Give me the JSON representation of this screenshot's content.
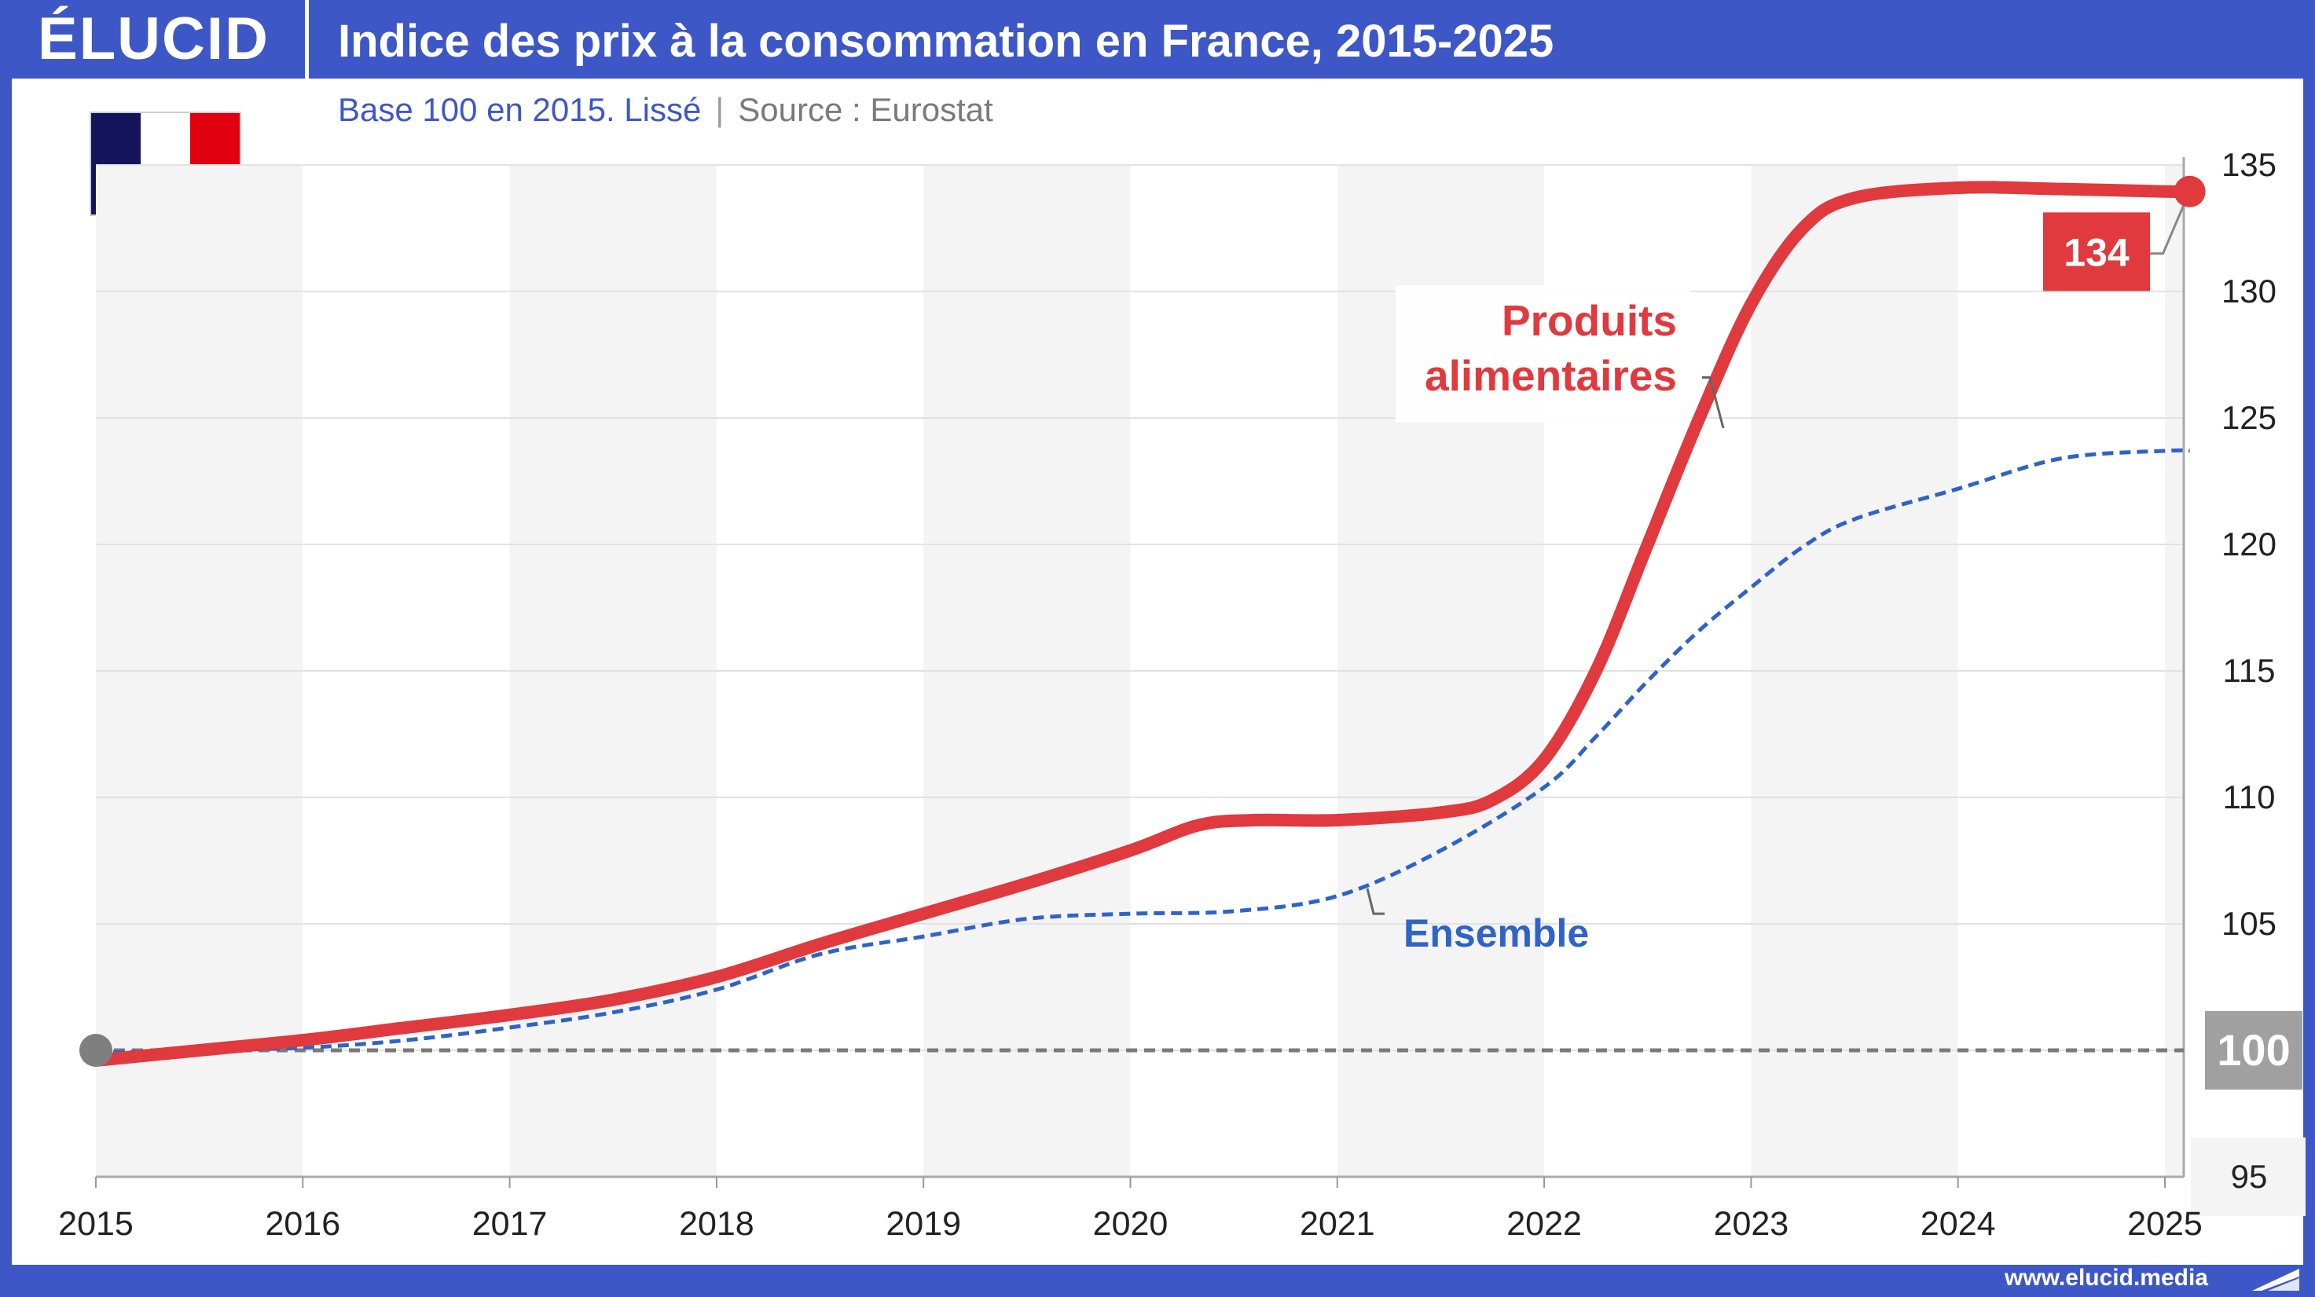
{
  "header": {
    "logo": "ÉLUCID",
    "title": "Indice des prix à la consommation en France, 2015-2025"
  },
  "subtitle": {
    "main": "Base 100 en 2015. Lissé",
    "separator": "|",
    "source": "Source : Eurostat"
  },
  "flag": {
    "name": "france-flag-icon",
    "colors": [
      "#14145a",
      "#ffffff",
      "#e1000f"
    ]
  },
  "footer": {
    "url": "www.elucid.media"
  },
  "colors": {
    "brand": "#3e57c7",
    "food": "#e0393e",
    "all_items": "#2f63c8",
    "baseline": "#7a7a7a"
  },
  "chart_data": {
    "type": "line",
    "title": "Indice des prix à la consommation en France, 2015-2025",
    "subtitle": "Base 100 en 2015. Lissé",
    "xlim": [
      2015,
      2025.17
    ],
    "ylim": [
      95,
      135
    ],
    "x_ticks": [
      "2015",
      "2016",
      "2017",
      "2018",
      "2019",
      "2020",
      "2021",
      "2022",
      "2023",
      "2024",
      "2025"
    ],
    "y_ticks": [
      95,
      100,
      105,
      110,
      115,
      120,
      125,
      130,
      135
    ],
    "y_axis_side": "right",
    "grid": true,
    "alternating_year_bands": true,
    "baseline": {
      "value": 100,
      "style": "dashed",
      "label": "100"
    },
    "start_point": {
      "x": 2015,
      "y": 100
    },
    "series": [
      {
        "name": "Produits alimentaires",
        "style": "solid-thick",
        "x": [
          2015,
          2015.5,
          2016,
          2016.5,
          2017,
          2017.5,
          2018,
          2018.5,
          2019,
          2019.5,
          2020,
          2020.33,
          2020.6,
          2021,
          2021.5,
          2021.75,
          2022,
          2022.25,
          2022.5,
          2022.75,
          2023,
          2023.25,
          2023.5,
          2024,
          2024.5,
          2025,
          2025.12
        ],
        "y": [
          99.6,
          100,
          100.4,
          100.9,
          101.4,
          102,
          102.9,
          104.2,
          105.4,
          106.6,
          107.9,
          108.9,
          109.1,
          109.1,
          109.4,
          109.9,
          111.5,
          115,
          120,
          125,
          129.5,
          132.5,
          133.7,
          134.1,
          134.05,
          133.95,
          133.95
        ],
        "end_label": "134",
        "label_lines": [
          "Produits",
          "alimentaires"
        ]
      },
      {
        "name": "Ensemble",
        "style": "dashed",
        "x": [
          2015,
          2015.5,
          2016,
          2016.5,
          2017,
          2017.5,
          2018,
          2018.5,
          2019,
          2019.5,
          2020,
          2020.5,
          2021,
          2021.5,
          2022,
          2022.25,
          2022.5,
          2022.75,
          2023,
          2023.25,
          2023.5,
          2024,
          2024.5,
          2025,
          2025.12
        ],
        "y": [
          99.9,
          100,
          100.1,
          100.4,
          100.9,
          101.5,
          102.4,
          103.8,
          104.5,
          105.2,
          105.4,
          105.5,
          106.1,
          107.9,
          110.4,
          112.4,
          114.6,
          116.6,
          118.3,
          119.9,
          121,
          122.2,
          123.4,
          123.7,
          123.7
        ],
        "label_lines": [
          "Ensemble"
        ]
      }
    ]
  }
}
